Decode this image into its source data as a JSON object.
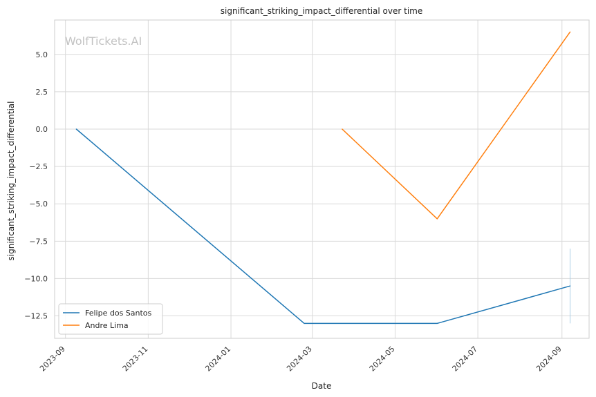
{
  "chart_data": {
    "type": "line",
    "title": "significant_striking_impact_differential over time",
    "xlabel": "Date",
    "ylabel": "significant_striking_impact_differential",
    "watermark": "WolfTickets.AI",
    "x_ticks": [
      "2023-09",
      "2023-11",
      "2024-01",
      "2024-03",
      "2024-05",
      "2024-07",
      "2024-09"
    ],
    "y_ticks": [
      5.0,
      2.5,
      0.0,
      -2.5,
      -5.0,
      -7.5,
      -10.0,
      -12.5
    ],
    "y_tick_labels": [
      "5.0",
      "2.5",
      "0.0",
      "−2.5",
      "−5.0",
      "−7.5",
      "−10.0",
      "−12.5"
    ],
    "xlim": [
      "2023-08-24",
      "2024-09-21"
    ],
    "ylim": [
      -14.0,
      7.3
    ],
    "grid": true,
    "legend_position": "lower-left",
    "series": [
      {
        "name": "Felipe dos Santos",
        "color": "#1f77b4",
        "x": [
          "2023-09-09",
          "2024-02-24",
          "2024-06-01",
          "2024-09-07"
        ],
        "y": [
          0.0,
          -13.0,
          -13.0,
          -10.5
        ]
      },
      {
        "name": "Andre Lima",
        "color": "#ff7f0e",
        "x": [
          "2024-03-23",
          "2024-06-01",
          "2024-09-07"
        ],
        "y": [
          0.0,
          -6.0,
          6.5
        ]
      }
    ],
    "error_bar": {
      "x": "2024-09-07",
      "y_low": -13.0,
      "y_high": -8.0,
      "color": "#a9cde6"
    }
  }
}
